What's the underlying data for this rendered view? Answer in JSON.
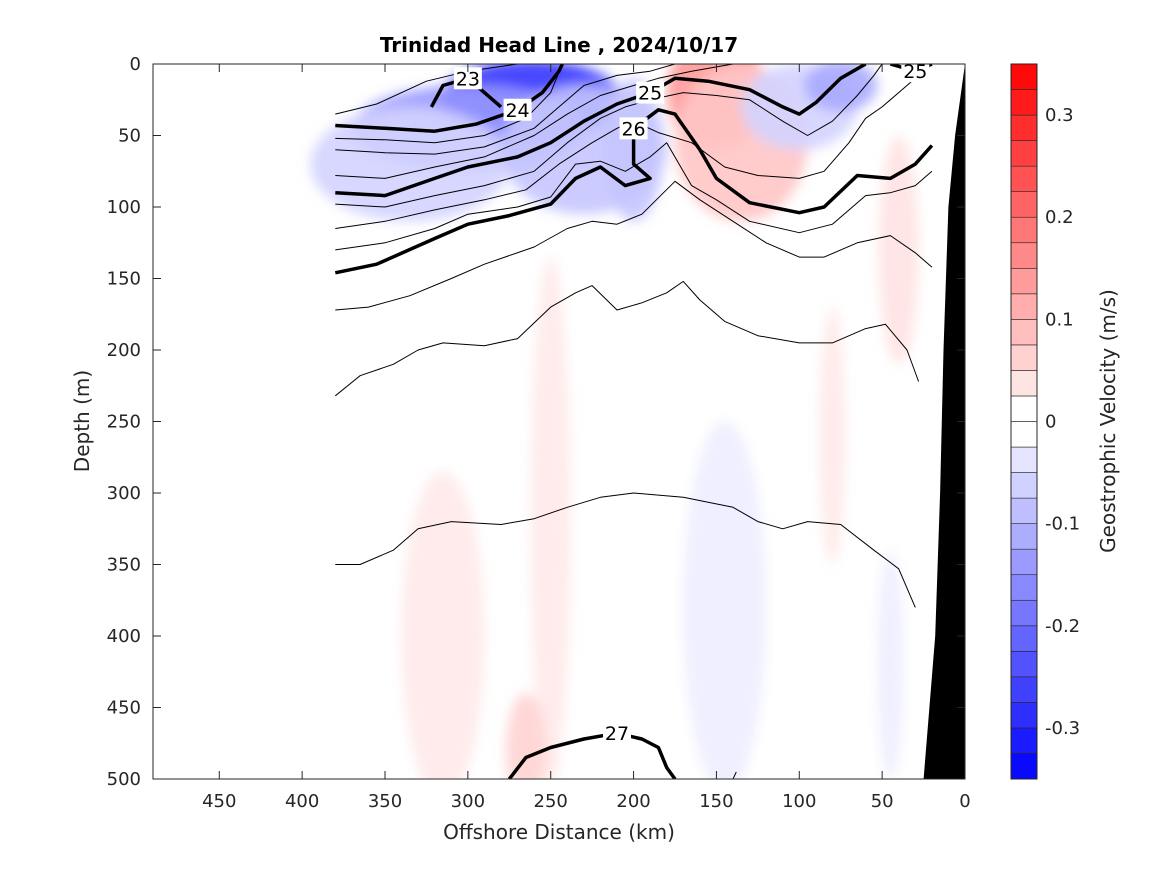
{
  "chart_data": {
    "type": "heatmap",
    "title": "Trinidad Head Line , 2024/10/17",
    "xlabel": "Offshore Distance (km)",
    "ylabel": "Depth (m)",
    "xlim": [
      490,
      0
    ],
    "ylim": [
      500,
      0
    ],
    "x_reversed": true,
    "y_reversed": true,
    "x_ticks": [
      450,
      400,
      350,
      300,
      250,
      200,
      150,
      100,
      50,
      0
    ],
    "y_ticks": [
      0,
      50,
      100,
      150,
      200,
      250,
      300,
      350,
      400,
      450,
      500
    ],
    "colorbar": {
      "label": "Geostrophic Velocity (m/s)",
      "range": [
        -0.35,
        0.35
      ],
      "levels": 28,
      "ticks": [
        0.3,
        0.2,
        0.1,
        0,
        -0.1,
        -0.2,
        -0.3
      ],
      "tick_labels": [
        "0.3",
        "0.2",
        "0.1",
        "0",
        "-0.1",
        "-0.2",
        "-0.3"
      ],
      "negative_color": "#0000ff",
      "positive_color": "#ff0000"
    },
    "contour_labels": [
      "23",
      "24",
      "25",
      "25",
      "25",
      "26",
      "26",
      "26",
      "27"
    ],
    "velocity_patches": [
      {
        "x": 262,
        "y": 25,
        "rx": 55,
        "ry": 28,
        "v": -0.28
      },
      {
        "x": 300,
        "y": 45,
        "rx": 70,
        "ry": 30,
        "v": -0.14
      },
      {
        "x": 335,
        "y": 70,
        "rx": 60,
        "ry": 40,
        "v": -0.06
      },
      {
        "x": 230,
        "y": 60,
        "rx": 50,
        "ry": 45,
        "v": -0.08
      },
      {
        "x": 200,
        "y": 60,
        "rx": 18,
        "ry": 50,
        "v": -0.08
      },
      {
        "x": 150,
        "y": 20,
        "rx": 30,
        "ry": 40,
        "v": 0.14
      },
      {
        "x": 135,
        "y": 55,
        "rx": 40,
        "ry": 55,
        "v": 0.08
      },
      {
        "x": 100,
        "y": 30,
        "rx": 35,
        "ry": 30,
        "v": -0.06
      },
      {
        "x": 75,
        "y": 15,
        "rx": 22,
        "ry": 18,
        "v": -0.12
      },
      {
        "x": 40,
        "y": 130,
        "rx": 12,
        "ry": 80,
        "v": 0.04
      },
      {
        "x": 250,
        "y": 320,
        "rx": 12,
        "ry": 185,
        "v": 0.03
      },
      {
        "x": 315,
        "y": 400,
        "rx": 25,
        "ry": 115,
        "v": 0.03
      },
      {
        "x": 145,
        "y": 380,
        "rx": 25,
        "ry": 130,
        "v": -0.025
      },
      {
        "x": 265,
        "y": 480,
        "rx": 12,
        "ry": 40,
        "v": 0.06
      },
      {
        "x": 80,
        "y": 260,
        "rx": 8,
        "ry": 90,
        "v": 0.03
      },
      {
        "x": 45,
        "y": 420,
        "rx": 8,
        "ry": 80,
        "v": -0.025
      }
    ],
    "density_contours": [
      {
        "level": "23",
        "bold": true,
        "points": [
          [
            322,
            30
          ],
          [
            315,
            15
          ],
          [
            300,
            10
          ],
          [
            290,
            20
          ],
          [
            280,
            30
          ]
        ]
      },
      {
        "level": "24",
        "bold": true,
        "points": [
          [
            380,
            43
          ],
          [
            350,
            45
          ],
          [
            320,
            47
          ],
          [
            295,
            42
          ],
          [
            270,
            32
          ],
          [
            255,
            20
          ],
          [
            245,
            5
          ],
          [
            243,
            0
          ]
        ]
      },
      {
        "level": "25",
        "bold": true,
        "points": [
          [
            380,
            90
          ],
          [
            350,
            92
          ],
          [
            320,
            80
          ],
          [
            300,
            72
          ],
          [
            270,
            65
          ],
          [
            250,
            55
          ],
          [
            230,
            40
          ],
          [
            210,
            28
          ],
          [
            190,
            20
          ],
          [
            175,
            10
          ],
          [
            155,
            12
          ],
          [
            130,
            18
          ],
          [
            110,
            30
          ],
          [
            100,
            35
          ],
          [
            90,
            27
          ],
          [
            75,
            10
          ],
          [
            60,
            0
          ]
        ]
      },
      {
        "level": "25",
        "bold": true,
        "points": [
          [
            45,
            0
          ],
          [
            30,
            5
          ],
          [
            20,
            0
          ]
        ]
      },
      {
        "level": "26",
        "bold": true,
        "points": [
          [
            380,
            146
          ],
          [
            355,
            140
          ],
          [
            320,
            122
          ],
          [
            300,
            112
          ],
          [
            275,
            106
          ],
          [
            250,
            98
          ],
          [
            235,
            80
          ],
          [
            220,
            72
          ],
          [
            205,
            85
          ],
          [
            190,
            80
          ],
          [
            200,
            70
          ],
          [
            200,
            45
          ],
          [
            185,
            32
          ],
          [
            175,
            35
          ],
          [
            160,
            60
          ],
          [
            150,
            80
          ],
          [
            130,
            97
          ],
          [
            100,
            104
          ],
          [
            85,
            100
          ],
          [
            65,
            78
          ],
          [
            45,
            80
          ],
          [
            30,
            70
          ],
          [
            20,
            57
          ]
        ]
      },
      {
        "level": "27",
        "bold": true,
        "points": [
          [
            275,
            500
          ],
          [
            265,
            485
          ],
          [
            250,
            478
          ],
          [
            230,
            472
          ],
          [
            210,
            468
          ],
          [
            195,
            472
          ],
          [
            185,
            478
          ],
          [
            180,
            492
          ],
          [
            175,
            500
          ]
        ]
      },
      {
        "level": "",
        "bold": false,
        "points": [
          [
            380,
            35
          ],
          [
            355,
            28
          ],
          [
            325,
            12
          ],
          [
            300,
            5
          ],
          [
            270,
            0
          ]
        ]
      },
      {
        "level": "",
        "bold": false,
        "points": [
          [
            380,
            52
          ],
          [
            350,
            53
          ],
          [
            320,
            55
          ],
          [
            290,
            50
          ],
          [
            265,
            38
          ],
          [
            250,
            20
          ],
          [
            243,
            0
          ]
        ]
      },
      {
        "level": "",
        "bold": false,
        "points": [
          [
            380,
            60
          ],
          [
            350,
            62
          ],
          [
            320,
            63
          ],
          [
            290,
            58
          ],
          [
            260,
            45
          ],
          [
            245,
            30
          ],
          [
            230,
            15
          ],
          [
            210,
            8
          ],
          [
            190,
            5
          ],
          [
            175,
            0
          ]
        ]
      },
      {
        "level": "",
        "bold": false,
        "points": [
          [
            380,
            78
          ],
          [
            350,
            80
          ],
          [
            320,
            72
          ],
          [
            290,
            65
          ],
          [
            260,
            50
          ],
          [
            240,
            35
          ],
          [
            220,
            22
          ],
          [
            200,
            15
          ],
          [
            185,
            10
          ],
          [
            165,
            5
          ],
          [
            140,
            0
          ]
        ]
      },
      {
        "level": "",
        "bold": false,
        "points": [
          [
            380,
            98
          ],
          [
            350,
            100
          ],
          [
            320,
            92
          ],
          [
            290,
            85
          ],
          [
            260,
            75
          ],
          [
            240,
            55
          ],
          [
            220,
            38
          ],
          [
            205,
            30
          ],
          [
            190,
            25
          ],
          [
            170,
            20
          ],
          [
            150,
            22
          ],
          [
            130,
            25
          ],
          [
            110,
            40
          ],
          [
            95,
            50
          ],
          [
            80,
            40
          ],
          [
            65,
            22
          ],
          [
            55,
            8
          ],
          [
            50,
            0
          ]
        ]
      },
      {
        "level": "",
        "bold": false,
        "points": [
          [
            380,
            115
          ],
          [
            350,
            110
          ],
          [
            320,
            102
          ],
          [
            290,
            95
          ],
          [
            265,
            88
          ],
          [
            245,
            70
          ],
          [
            225,
            55
          ],
          [
            210,
            45
          ],
          [
            200,
            40
          ],
          [
            185,
            48
          ],
          [
            165,
            55
          ],
          [
            145,
            72
          ],
          [
            125,
            78
          ],
          [
            100,
            80
          ],
          [
            85,
            75
          ],
          [
            70,
            55
          ],
          [
            60,
            38
          ],
          [
            50,
            30
          ],
          [
            40,
            20
          ],
          [
            30,
            10
          ]
        ]
      },
      {
        "level": "",
        "bold": false,
        "points": [
          [
            380,
            130
          ],
          [
            350,
            125
          ],
          [
            320,
            115
          ],
          [
            300,
            105
          ],
          [
            270,
            100
          ],
          [
            250,
            93
          ],
          [
            235,
            70
          ],
          [
            220,
            68
          ],
          [
            205,
            75
          ],
          [
            190,
            65
          ],
          [
            180,
            55
          ],
          [
            165,
            85
          ],
          [
            150,
            95
          ],
          [
            130,
            110
          ],
          [
            100,
            118
          ],
          [
            80,
            112
          ],
          [
            60,
            92
          ],
          [
            45,
            90
          ],
          [
            30,
            85
          ],
          [
            20,
            75
          ]
        ]
      },
      {
        "level": "",
        "bold": false,
        "points": [
          [
            380,
            172
          ],
          [
            360,
            170
          ],
          [
            335,
            162
          ],
          [
            310,
            150
          ],
          [
            290,
            140
          ],
          [
            260,
            128
          ],
          [
            240,
            115
          ],
          [
            225,
            110
          ],
          [
            210,
            112
          ],
          [
            195,
            105
          ],
          [
            175,
            82
          ],
          [
            160,
            95
          ],
          [
            140,
            110
          ],
          [
            120,
            125
          ],
          [
            100,
            135
          ],
          [
            85,
            135
          ],
          [
            65,
            125
          ],
          [
            45,
            120
          ],
          [
            30,
            132
          ],
          [
            20,
            142
          ]
        ]
      },
      {
        "level": "",
        "bold": false,
        "points": [
          [
            380,
            232
          ],
          [
            365,
            218
          ],
          [
            345,
            210
          ],
          [
            330,
            200
          ],
          [
            315,
            195
          ],
          [
            290,
            197
          ],
          [
            270,
            192
          ],
          [
            250,
            170
          ],
          [
            235,
            160
          ],
          [
            225,
            155
          ],
          [
            210,
            172
          ],
          [
            195,
            167
          ],
          [
            180,
            160
          ],
          [
            170,
            152
          ],
          [
            160,
            165
          ],
          [
            145,
            180
          ],
          [
            125,
            190
          ],
          [
            100,
            195
          ],
          [
            80,
            195
          ],
          [
            60,
            185
          ],
          [
            48,
            182
          ],
          [
            35,
            200
          ],
          [
            28,
            222
          ]
        ]
      },
      {
        "level": "",
        "bold": false,
        "points": [
          [
            380,
            350
          ],
          [
            365,
            350
          ],
          [
            345,
            340
          ],
          [
            330,
            325
          ],
          [
            310,
            320
          ],
          [
            280,
            322
          ],
          [
            260,
            318
          ],
          [
            240,
            310
          ],
          [
            220,
            303
          ],
          [
            200,
            300
          ],
          [
            170,
            303
          ],
          [
            140,
            310
          ],
          [
            125,
            320
          ],
          [
            110,
            325
          ],
          [
            95,
            320
          ],
          [
            75,
            322
          ],
          [
            55,
            340
          ],
          [
            40,
            353
          ],
          [
            30,
            380
          ]
        ]
      },
      {
        "level": "",
        "bold": false,
        "points": [
          [
            140,
            500
          ],
          [
            138,
            495
          ]
        ]
      }
    ],
    "bathymetry": [
      [
        25,
        500
      ],
      [
        18,
        400
      ],
      [
        15,
        300
      ],
      [
        13,
        200
      ],
      [
        10,
        100
      ],
      [
        6,
        50
      ],
      [
        0,
        0
      ],
      [
        0,
        500
      ]
    ]
  }
}
